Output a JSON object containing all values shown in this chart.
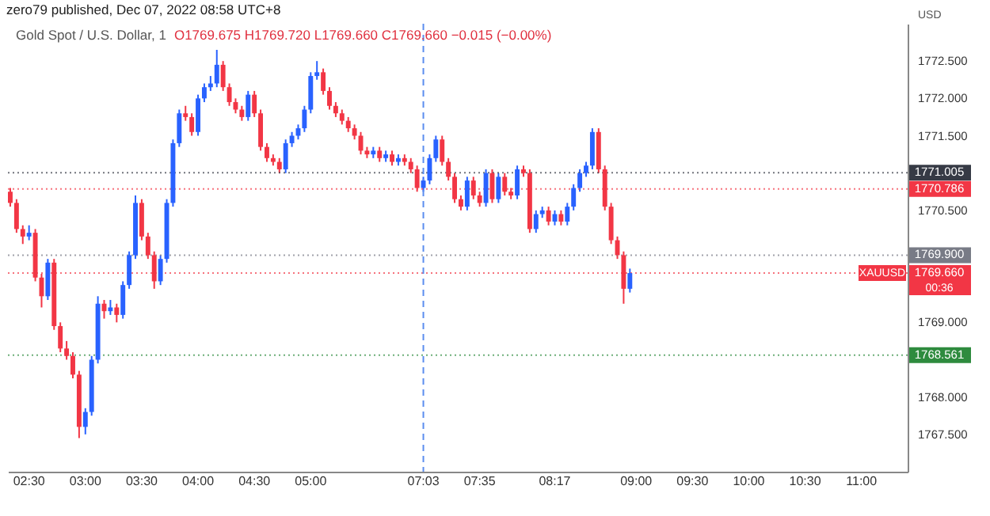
{
  "chart_data": {
    "type": "candlestick",
    "title": "Gold Spot / U.S. Dollar, 1",
    "subtitle": "O1769.675 H1769.720 L1769.660 C1769.660 −0.015 (−0.00%)",
    "ylabel": "USD",
    "annotations": [
      "zero79 published, Dec 07, 2022 08:58 UTC+8",
      {
        "text": "XAUUSD",
        "y": 1769.66
      },
      "00:36"
    ],
    "categories": [
      null,
      null,
      null,
      "02:30",
      null,
      null,
      null,
      null,
      null,
      null,
      null,
      null,
      "03:00",
      null,
      null,
      null,
      null,
      null,
      null,
      null,
      null,
      "03:30",
      null,
      null,
      null,
      null,
      null,
      null,
      null,
      null,
      "04:00",
      null,
      null,
      null,
      null,
      null,
      null,
      null,
      null,
      "04:30",
      null,
      null,
      null,
      null,
      null,
      null,
      null,
      null,
      "05:00",
      null,
      null,
      null,
      null,
      null,
      null,
      null,
      null,
      null,
      null,
      null,
      null,
      null,
      null,
      null,
      null,
      null,
      "07:03",
      null,
      null,
      null,
      null,
      null,
      null,
      null,
      null,
      "07:35",
      null,
      null,
      null,
      null,
      null,
      null,
      null,
      null,
      null,
      null,
      null,
      "08:17",
      null,
      null,
      null,
      null,
      null,
      null,
      null,
      null,
      null,
      null,
      null,
      null,
      "09:00",
      null,
      null,
      null,
      null,
      null,
      null,
      null,
      null,
      "09:30",
      null,
      null,
      null,
      null,
      null,
      null,
      null,
      null,
      "10:00",
      null,
      null,
      null,
      null,
      null,
      null,
      null,
      null,
      "10:30",
      null,
      null,
      null,
      null,
      null,
      null,
      null,
      null,
      "11:00",
      null,
      null,
      null,
      null,
      null,
      null,
      null
    ],
    "ohlc": [
      [
        1770.75,
        1770.8,
        1770.55,
        1770.6
      ],
      [
        1770.6,
        1770.65,
        1770.2,
        1770.25
      ],
      [
        1770.25,
        1770.3,
        1770.05,
        1770.15
      ],
      [
        1770.15,
        1770.3,
        1770.1,
        1770.2
      ],
      [
        1770.2,
        1770.25,
        1769.55,
        1769.6
      ],
      [
        1769.6,
        1769.65,
        1769.2,
        1769.35
      ],
      [
        1769.35,
        1769.85,
        1769.3,
        1769.8
      ],
      [
        1769.8,
        1769.85,
        1768.9,
        1768.95
      ],
      [
        1768.95,
        1769.0,
        1768.6,
        1768.65
      ],
      [
        1768.65,
        1768.75,
        1768.5,
        1768.55
      ],
      [
        1768.55,
        1768.6,
        1768.25,
        1768.3
      ],
      [
        1768.3,
        1768.35,
        1767.45,
        1767.6
      ],
      [
        1767.6,
        1767.85,
        1767.5,
        1767.8
      ],
      [
        1767.8,
        1768.55,
        1767.75,
        1768.5
      ],
      [
        1768.5,
        1769.35,
        1768.45,
        1769.25
      ],
      [
        1769.25,
        1769.3,
        1769.05,
        1769.15
      ],
      [
        1769.15,
        1769.3,
        1769.1,
        1769.2
      ],
      [
        1769.2,
        1769.25,
        1769.0,
        1769.1
      ],
      [
        1769.1,
        1769.55,
        1769.05,
        1769.5
      ],
      [
        1769.5,
        1769.95,
        1769.45,
        1769.9
      ],
      [
        1769.9,
        1770.7,
        1769.85,
        1770.6
      ],
      [
        1770.6,
        1770.65,
        1770.1,
        1770.15
      ],
      [
        1770.15,
        1770.2,
        1769.85,
        1769.9
      ],
      [
        1769.9,
        1769.95,
        1769.45,
        1769.55
      ],
      [
        1769.55,
        1769.9,
        1769.5,
        1769.85
      ],
      [
        1769.85,
        1770.65,
        1769.8,
        1770.6
      ],
      [
        1770.6,
        1771.45,
        1770.55,
        1771.4
      ],
      [
        1771.4,
        1771.85,
        1771.35,
        1771.8
      ],
      [
        1771.8,
        1771.9,
        1771.7,
        1771.75
      ],
      [
        1771.75,
        1771.8,
        1771.5,
        1771.55
      ],
      [
        1771.55,
        1772.05,
        1771.5,
        1772.0
      ],
      [
        1772.0,
        1772.2,
        1771.95,
        1772.15
      ],
      [
        1772.15,
        1772.3,
        1772.1,
        1772.2
      ],
      [
        1772.2,
        1772.65,
        1772.15,
        1772.45
      ],
      [
        1772.45,
        1772.5,
        1772.1,
        1772.15
      ],
      [
        1772.15,
        1772.2,
        1771.9,
        1771.95
      ],
      [
        1771.95,
        1772.0,
        1771.8,
        1771.85
      ],
      [
        1771.85,
        1771.9,
        1771.7,
        1771.75
      ],
      [
        1771.75,
        1772.1,
        1771.7,
        1772.05
      ],
      [
        1772.05,
        1772.1,
        1771.75,
        1771.8
      ],
      [
        1771.8,
        1771.85,
        1771.3,
        1771.35
      ],
      [
        1771.35,
        1771.4,
        1771.15,
        1771.2
      ],
      [
        1771.2,
        1771.25,
        1771.1,
        1771.15
      ],
      [
        1771.15,
        1771.2,
        1771.0,
        1771.05
      ],
      [
        1771.05,
        1771.45,
        1771.0,
        1771.4
      ],
      [
        1771.4,
        1771.55,
        1771.35,
        1771.5
      ],
      [
        1771.5,
        1771.65,
        1771.45,
        1771.6
      ],
      [
        1771.6,
        1771.9,
        1771.55,
        1771.85
      ],
      [
        1771.85,
        1772.35,
        1771.8,
        1772.3
      ],
      [
        1772.3,
        1772.5,
        1772.25,
        1772.35
      ],
      [
        1772.35,
        1772.4,
        1772.05,
        1772.1
      ],
      [
        1772.1,
        1772.15,
        1771.85,
        1771.9
      ],
      [
        1771.9,
        1771.95,
        1771.75,
        1771.8
      ],
      [
        1771.8,
        1771.85,
        1771.65,
        1771.7
      ],
      [
        1771.7,
        1771.75,
        1771.55,
        1771.6
      ],
      [
        1771.6,
        1771.65,
        1771.45,
        1771.5
      ],
      [
        1771.5,
        1771.55,
        1771.25,
        1771.3
      ],
      [
        1771.3,
        1771.35,
        1771.2,
        1771.25
      ],
      [
        1771.25,
        1771.35,
        1771.2,
        1771.3
      ],
      [
        1771.3,
        1771.35,
        1771.15,
        1771.2
      ],
      [
        1771.2,
        1771.3,
        1771.15,
        1771.25
      ],
      [
        1771.25,
        1771.3,
        1771.1,
        1771.15
      ],
      [
        1771.15,
        1771.25,
        1771.1,
        1771.2
      ],
      [
        1771.2,
        1771.25,
        1771.1,
        1771.15
      ],
      [
        1771.15,
        1771.2,
        1771.0,
        1771.05
      ],
      [
        1771.05,
        1771.1,
        1770.75,
        1770.8
      ],
      [
        1770.8,
        1770.95,
        1770.75,
        1770.9
      ],
      [
        1770.9,
        1771.25,
        1770.85,
        1771.2
      ],
      [
        1771.2,
        1771.5,
        1771.15,
        1771.45
      ],
      [
        1771.45,
        1771.5,
        1771.1,
        1771.15
      ],
      [
        1771.15,
        1771.2,
        1770.9,
        1770.95
      ],
      [
        1770.95,
        1771.0,
        1770.6,
        1770.65
      ],
      [
        1770.65,
        1770.7,
        1770.5,
        1770.55
      ],
      [
        1770.55,
        1770.95,
        1770.5,
        1770.9
      ],
      [
        1770.9,
        1770.95,
        1770.65,
        1770.7
      ],
      [
        1770.7,
        1770.75,
        1770.55,
        1770.6
      ],
      [
        1770.6,
        1771.05,
        1770.55,
        1771.0
      ],
      [
        1771.0,
        1771.05,
        1770.6,
        1770.65
      ],
      [
        1770.65,
        1771.0,
        1770.6,
        1770.95
      ],
      [
        1770.95,
        1771.0,
        1770.7,
        1770.75
      ],
      [
        1770.75,
        1770.8,
        1770.65,
        1770.7
      ],
      [
        1770.7,
        1771.1,
        1770.65,
        1771.05
      ],
      [
        1771.05,
        1771.1,
        1770.95,
        1771.0
      ],
      [
        1771.0,
        1771.05,
        1770.2,
        1770.25
      ],
      [
        1770.25,
        1770.5,
        1770.2,
        1770.45
      ],
      [
        1770.45,
        1770.55,
        1770.4,
        1770.5
      ],
      [
        1770.5,
        1770.55,
        1770.3,
        1770.35
      ],
      [
        1770.35,
        1770.5,
        1770.3,
        1770.45
      ],
      [
        1770.45,
        1770.5,
        1770.3,
        1770.35
      ],
      [
        1770.35,
        1770.6,
        1770.3,
        1770.55
      ],
      [
        1770.55,
        1770.85,
        1770.5,
        1770.8
      ],
      [
        1770.8,
        1771.05,
        1770.75,
        1771.0
      ],
      [
        1771.0,
        1771.15,
        1770.95,
        1771.1
      ],
      [
        1771.1,
        1771.6,
        1771.05,
        1771.55
      ],
      [
        1771.55,
        1771.6,
        1771.0,
        1771.05
      ],
      [
        1771.05,
        1771.1,
        1770.5,
        1770.55
      ],
      [
        1770.55,
        1770.6,
        1770.05,
        1770.1
      ],
      [
        1770.1,
        1770.15,
        1769.85,
        1769.9
      ],
      [
        1769.9,
        1769.95,
        1769.25,
        1769.45
      ],
      [
        1769.45,
        1769.72,
        1769.4,
        1769.66
      ],
      null,
      null,
      null,
      null,
      null,
      null,
      null,
      null,
      null,
      null,
      null,
      null,
      null,
      null,
      null,
      null,
      null,
      null,
      null,
      null,
      null,
      null,
      null,
      null,
      null,
      null,
      null,
      null,
      null,
      null,
      null,
      null,
      null,
      null,
      null,
      null,
      null,
      null,
      null,
      null,
      null,
      null,
      null,
      null
    ],
    "ylim": [
      1767.0,
      1773.0
    ],
    "yticks": [
      {
        "value": 1767.5,
        "label": "1767.500"
      },
      {
        "value": 1768.0,
        "label": "1768.000"
      },
      {
        "value": 1769.0,
        "label": "1769.000"
      },
      {
        "value": 1770.5,
        "label": "1770.500"
      },
      {
        "value": 1771.5,
        "label": "1771.500"
      },
      {
        "value": 1772.0,
        "label": "1772.000"
      },
      {
        "value": 1772.5,
        "label": "1772.500"
      }
    ],
    "ref_lines": [
      {
        "axis": "y",
        "value": 1771.005,
        "label": "1771.005",
        "color": "#363a45",
        "line_style": "dotted"
      },
      {
        "axis": "y",
        "value": 1770.786,
        "label": "1770.786",
        "color": "#f23645",
        "line_style": "dotted"
      },
      {
        "axis": "y",
        "value": 1769.9,
        "label": "1769.900",
        "color": "#787b86",
        "line_style": "dotted"
      },
      {
        "axis": "y",
        "value": 1769.66,
        "label": "1769.660",
        "color": "#f23645",
        "line_style": "dotted"
      },
      {
        "axis": "y",
        "value": 1768.561,
        "label": "1768.561",
        "color": "#2e8b3e",
        "line_style": "dotted"
      },
      {
        "axis": "x",
        "value": "07:03",
        "color": "#5b8def",
        "line_style": "dashed"
      }
    ],
    "grid": false
  }
}
